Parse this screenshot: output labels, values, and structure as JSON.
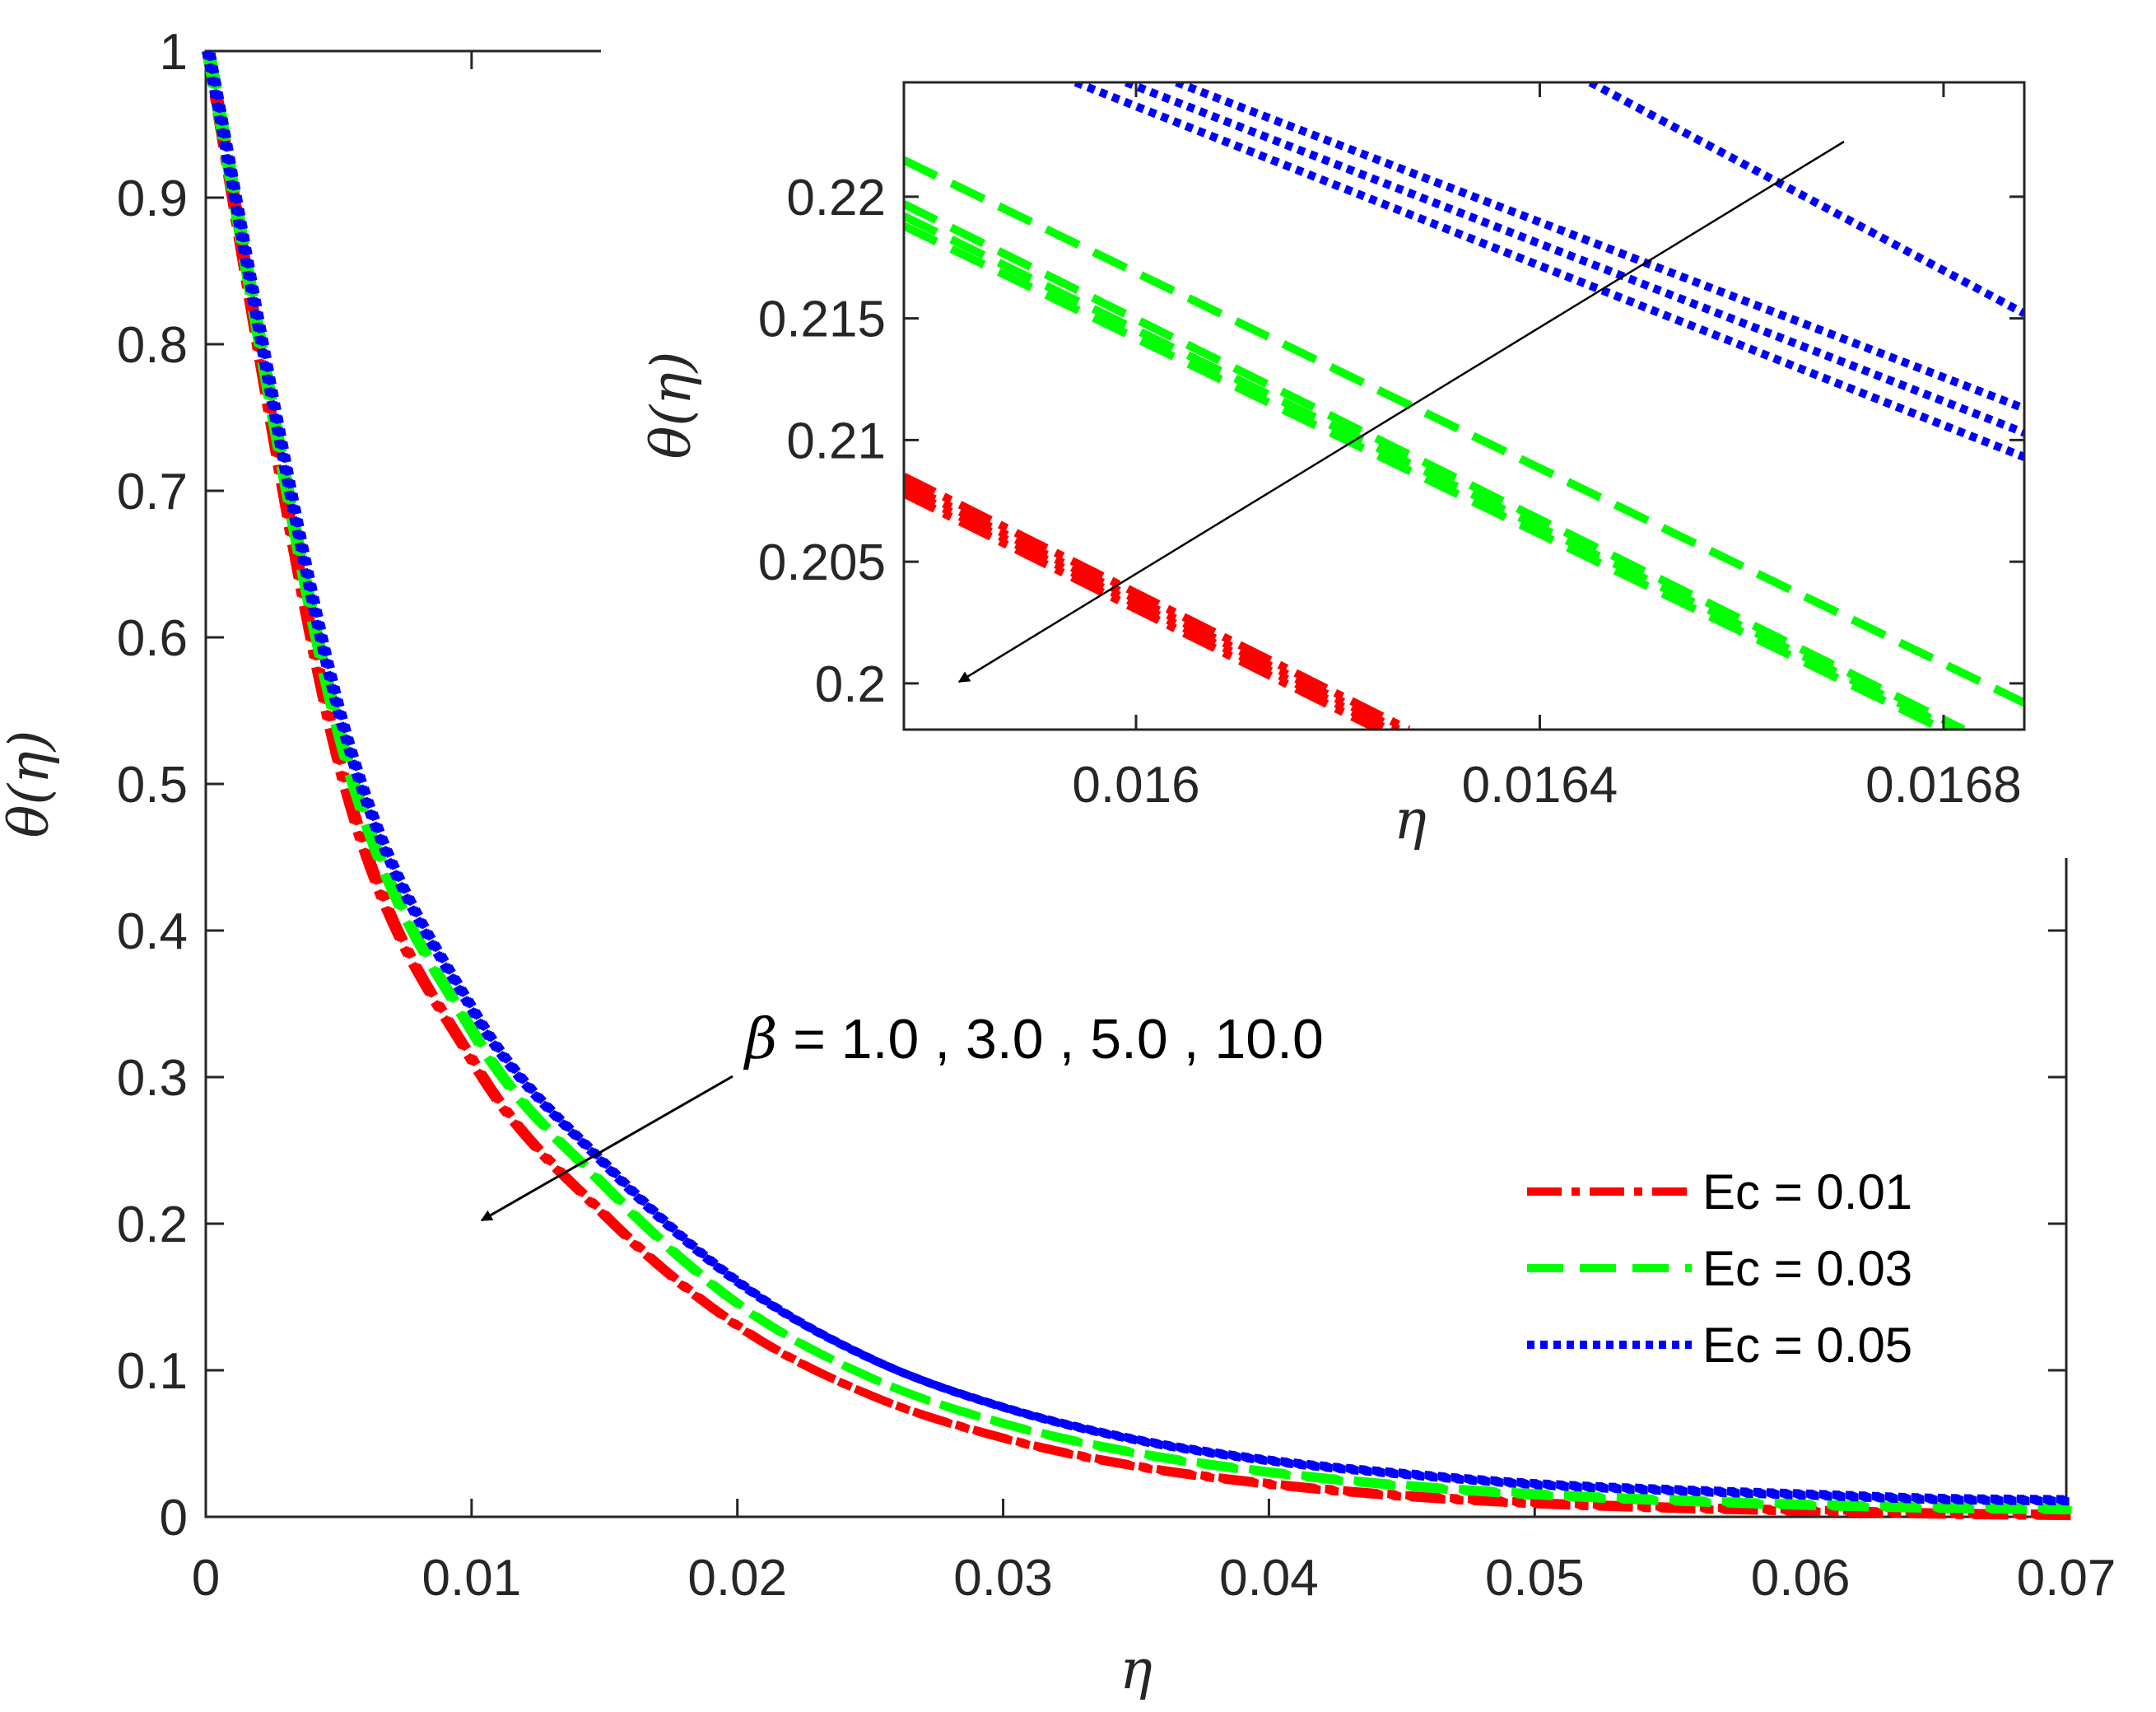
{
  "chart_data": [
    {
      "type": "line",
      "role": "main",
      "xlabel": "η",
      "ylabel": "θ(η)",
      "xlim": [
        0,
        0.07
      ],
      "ylim": [
        0,
        1
      ],
      "xticks": [
        0,
        0.01,
        0.02,
        0.03,
        0.04,
        0.05,
        0.06,
        0.07
      ],
      "xtick_labels": [
        "0",
        "0.01",
        "0.02",
        "0.03",
        "0.04",
        "0.05",
        "0.06",
        "0.07"
      ],
      "yticks": [
        0,
        0.1,
        0.2,
        0.3,
        0.4,
        0.5,
        0.6,
        0.7,
        0.8,
        0.9,
        1
      ],
      "ytick_labels": [
        "0",
        "0.1",
        "0.2",
        "0.3",
        "0.4",
        "0.5",
        "0.6",
        "0.7",
        "0.8",
        "0.9",
        "1"
      ],
      "x": [
        0,
        0.005,
        0.01,
        0.015,
        0.02,
        0.025,
        0.03,
        0.035,
        0.04,
        0.045,
        0.05,
        0.055,
        0.06,
        0.065,
        0.07
      ],
      "series": [
        {
          "name": "Ec = 0.01",
          "color": "#ff0000",
          "dash": "dashdot",
          "beta": [
            1.0,
            3.0,
            5.0,
            10.0
          ],
          "values": [
            1,
            0.51,
            0.31,
            0.205,
            0.13,
            0.083,
            0.054,
            0.035,
            0.023,
            0.015,
            0.01,
            0.007,
            0.005,
            0.003,
            0.002
          ]
        },
        {
          "name": "Ec = 0.03",
          "color": "#00ff00",
          "dash": "dashed",
          "beta": [
            1.0,
            3.0,
            5.0,
            10.0
          ],
          "values": [
            1,
            0.53,
            0.33,
            0.225,
            0.145,
            0.095,
            0.064,
            0.044,
            0.031,
            0.022,
            0.016,
            0.012,
            0.009,
            0.007,
            0.006
          ]
        },
        {
          "name": "Ec = 0.05",
          "color": "#0000ff",
          "dash": "dotted",
          "beta": [
            1.0,
            3.0,
            5.0,
            10.0
          ],
          "values": [
            1,
            0.545,
            0.345,
            0.24,
            0.16,
            0.108,
            0.075,
            0.053,
            0.039,
            0.03,
            0.023,
            0.019,
            0.016,
            0.013,
            0.012
          ]
        }
      ],
      "annotation": {
        "symbol": "β",
        "text": " = 1.0 , 3.0 , 5.0 , 10.0"
      },
      "legend": {
        "position": "bottom-right",
        "entries": [
          "Ec = 0.01",
          "Ec = 0.03",
          "Ec = 0.05"
        ]
      }
    },
    {
      "type": "line",
      "role": "inset",
      "xlabel": "η",
      "ylabel": "θ(η)",
      "xlim": [
        0.01577,
        0.01688
      ],
      "ylim": [
        0.1981,
        0.2247
      ],
      "xticks": [
        0.016,
        0.0164,
        0.0168
      ],
      "xtick_labels": [
        "0.016",
        "0.0164",
        "0.0168"
      ],
      "yticks": [
        0.2,
        0.205,
        0.21,
        0.215,
        0.22
      ],
      "ytick_labels": [
        "0.2",
        "0.205",
        "0.21",
        "0.215",
        "0.22"
      ],
      "series": [
        {
          "name": "Ec = 0.01",
          "color": "#ff0000",
          "dash": "dashdot",
          "lines": [
            {
              "beta": 1.0,
              "x": [
                0.01577,
                0.01627
              ],
              "y": [
                0.2085,
                0.1981
              ]
            },
            {
              "beta": 3.0,
              "x": [
                0.01577,
                0.01626
              ],
              "y": [
                0.2082,
                0.1981
              ]
            },
            {
              "beta": 5.0,
              "x": [
                0.01577,
                0.01625
              ],
              "y": [
                0.208,
                0.1981
              ]
            },
            {
              "beta": 10.0,
              "x": [
                0.01577,
                0.01624
              ],
              "y": [
                0.2078,
                0.1981
              ]
            }
          ]
        },
        {
          "name": "Ec = 0.03",
          "color": "#00ff00",
          "dash": "dashed",
          "lines": [
            {
              "beta": 1.0,
              "x": [
                0.01577,
                0.01688
              ],
              "y": [
                0.2215,
                0.1992
              ]
            },
            {
              "beta": 3.0,
              "x": [
                0.01577,
                0.01682
              ],
              "y": [
                0.2197,
                0.1981
              ]
            },
            {
              "beta": 5.0,
              "x": [
                0.01577,
                0.01681
              ],
              "y": [
                0.2192,
                0.1981
              ]
            },
            {
              "beta": 10.0,
              "x": [
                0.01577,
                0.0168
              ],
              "y": [
                0.2188,
                0.1981
              ]
            }
          ]
        },
        {
          "name": "Ec = 0.05",
          "color": "#0000ff",
          "dash": "dotted",
          "lines": [
            {
              "beta": 1.0,
              "x": [
                0.01645,
                0.01688
              ],
              "y": [
                0.2247,
                0.2152
              ]
            },
            {
              "beta": 3.0,
              "x": [
                0.01604,
                0.01688
              ],
              "y": [
                0.2247,
                0.2113
              ]
            },
            {
              "beta": 5.0,
              "x": [
                0.01599,
                0.01688
              ],
              "y": [
                0.2247,
                0.2103
              ]
            },
            {
              "beta": 10.0,
              "x": [
                0.01594,
                0.01688
              ],
              "y": [
                0.2247,
                0.2093
              ]
            }
          ]
        }
      ]
    }
  ]
}
